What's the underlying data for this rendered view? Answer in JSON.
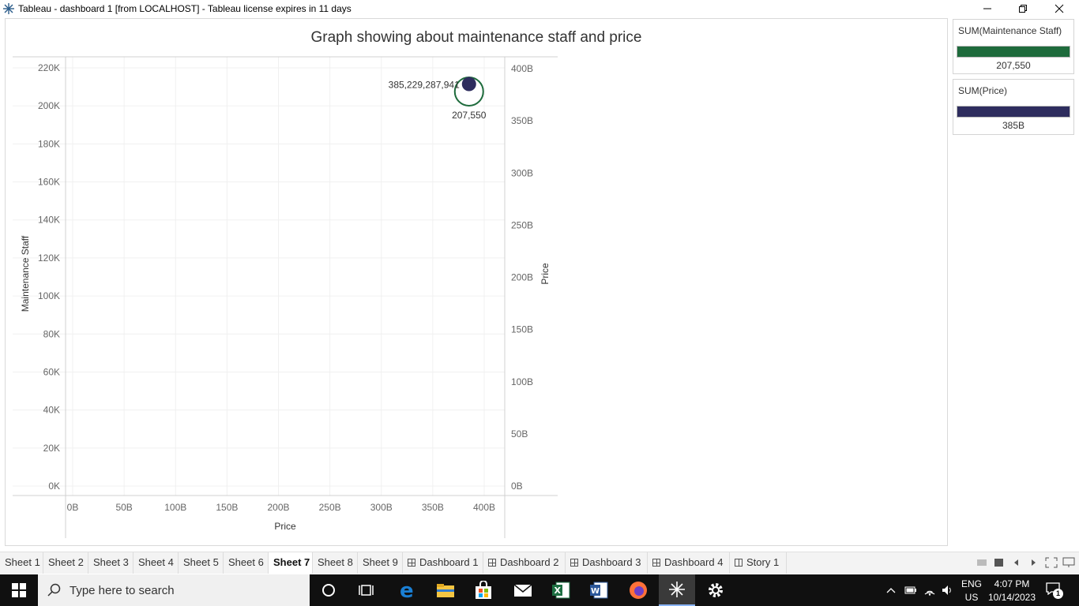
{
  "window": {
    "title": "Tableau - dashboard 1 [from LOCALHOST] - Tableau license expires in 11 days",
    "icon": "tableau-icon",
    "controls": [
      "minimize",
      "restore",
      "close"
    ]
  },
  "chart_data": {
    "type": "scatter",
    "title": "Graph showing about maintenance staff and price",
    "xlabel": "Price",
    "ylabel": "Maintenance Staff",
    "y2label": "Price",
    "xlim": [
      0,
      400
    ],
    "x_unit": "B",
    "ylim": [
      0,
      220000
    ],
    "y2lim": [
      0,
      400
    ],
    "x_ticks": [
      "0B",
      "50B",
      "100B",
      "150B",
      "200B",
      "250B",
      "300B",
      "350B",
      "400B"
    ],
    "y_ticks": [
      "0K",
      "20K",
      "40K",
      "60K",
      "80K",
      "100K",
      "120K",
      "140K",
      "160K",
      "180K",
      "200K",
      "220K"
    ],
    "y2_ticks": [
      "0B",
      "50B",
      "100B",
      "150B",
      "200B",
      "250B",
      "300B",
      "350B",
      "400B"
    ],
    "grid": true,
    "series": [
      {
        "name": "SUM(Maintenance Staff)",
        "axis": "left",
        "marker": "open-circle",
        "color": "#1e6b3c",
        "points": [
          {
            "x": 385.23,
            "y": 207550,
            "label": "207,550"
          }
        ]
      },
      {
        "name": "SUM(Price)",
        "axis": "right",
        "marker": "filled-circle",
        "color": "#2e2d5e",
        "points": [
          {
            "x": 385.23,
            "y": 385.23,
            "label": "385,229,287,941"
          }
        ]
      }
    ]
  },
  "legends": [
    {
      "title": "SUM(Maintenance Staff)",
      "color": "#1e6b3c",
      "value": "207,550"
    },
    {
      "title": "SUM(Price)",
      "color": "#2e2d5e",
      "value": "385B"
    }
  ],
  "tabs": [
    {
      "label": "Sheet 1",
      "kind": "sheet",
      "active": false
    },
    {
      "label": "Sheet 2",
      "kind": "sheet",
      "active": false
    },
    {
      "label": "Sheet 3",
      "kind": "sheet",
      "active": false
    },
    {
      "label": "Sheet 4",
      "kind": "sheet",
      "active": false
    },
    {
      "label": "Sheet 5",
      "kind": "sheet",
      "active": false
    },
    {
      "label": "Sheet 6",
      "kind": "sheet",
      "active": false
    },
    {
      "label": "Sheet 7",
      "kind": "sheet",
      "active": true
    },
    {
      "label": "Sheet 8",
      "kind": "sheet",
      "active": false
    },
    {
      "label": "Sheet 9",
      "kind": "sheet",
      "active": false
    },
    {
      "label": "Dashboard 1",
      "kind": "dashboard",
      "active": false
    },
    {
      "label": "Dashboard 2",
      "kind": "dashboard",
      "active": false
    },
    {
      "label": "Dashboard 3",
      "kind": "dashboard",
      "active": false
    },
    {
      "label": "Dashboard 4",
      "kind": "dashboard",
      "active": false
    },
    {
      "label": "Story 1",
      "kind": "story",
      "active": false
    }
  ],
  "taskbar": {
    "search_placeholder": "Type here to search",
    "lang_top": "ENG",
    "lang_bottom": "US",
    "time": "4:07 PM",
    "date": "10/14/2023",
    "notification_count": "1"
  },
  "colors": {
    "maintenance": "#1e6b3c",
    "price": "#2e2d5e",
    "grid": "#f0f0f0",
    "axis": "#d0d0d0"
  }
}
